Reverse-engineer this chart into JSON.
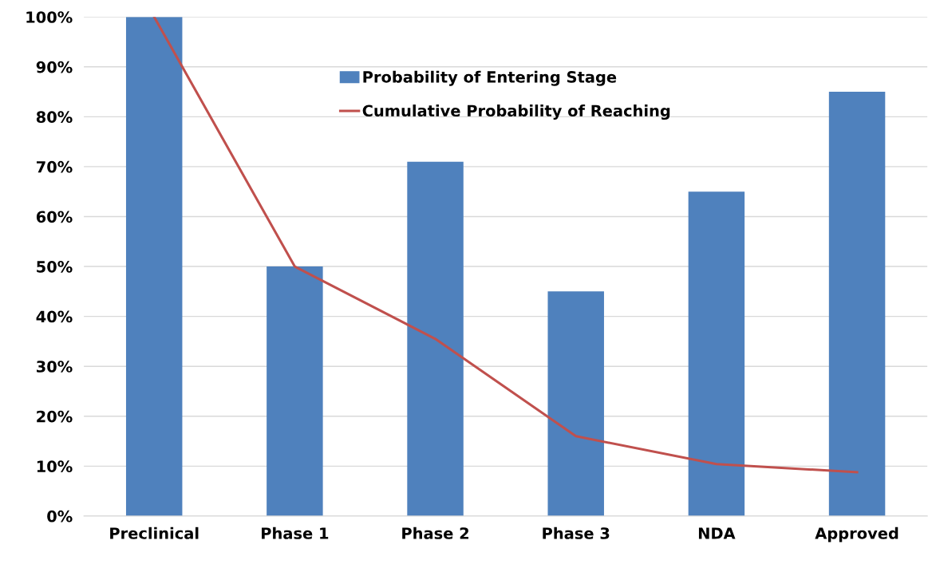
{
  "chart_data": {
    "type": "bar",
    "categories": [
      "Preclinical",
      "Phase 1",
      "Phase 2",
      "Phase 3",
      "NDA",
      "Approved"
    ],
    "series": [
      {
        "name": "Probability of Entering Stage",
        "color": "#4f81bd",
        "values": [
          100,
          50,
          71,
          45,
          65,
          85
        ]
      },
      {
        "name": "Cumulative Probability of Reaching",
        "color": "#c0504d",
        "type": "line",
        "values": [
          100,
          50,
          35.5,
          16,
          10.4,
          8.8
        ]
      }
    ],
    "ylim": [
      0,
      100
    ],
    "yticks": [
      {
        "value": 0,
        "label": "0%"
      },
      {
        "value": 10,
        "label": "10%"
      },
      {
        "value": 20,
        "label": "20%"
      },
      {
        "value": 30,
        "label": "30%"
      },
      {
        "value": 40,
        "label": "40%"
      },
      {
        "value": 50,
        "label": "50%"
      },
      {
        "value": 60,
        "label": "60%"
      },
      {
        "value": 70,
        "label": "70%"
      },
      {
        "value": 80,
        "label": "80%"
      },
      {
        "value": 90,
        "label": "90%"
      },
      {
        "value": 100,
        "label": "100%"
      }
    ],
    "grid": "y",
    "legend": "top",
    "marker": "none",
    "line_style": "solid"
  }
}
